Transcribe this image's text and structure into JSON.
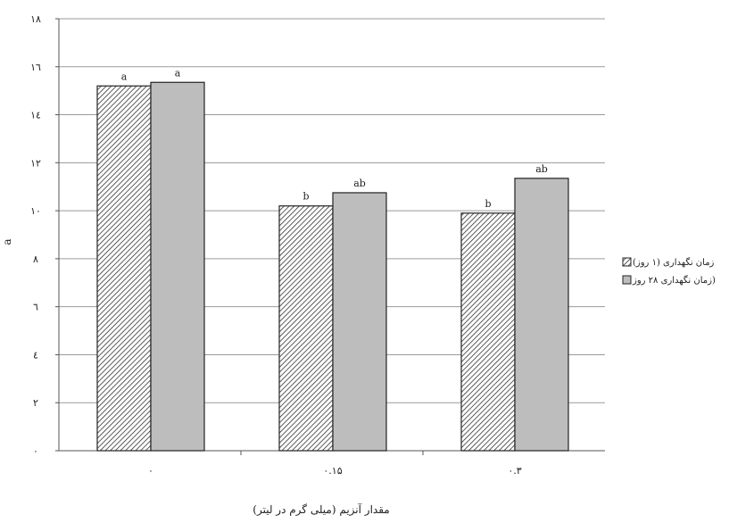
{
  "chart_data": {
    "type": "bar",
    "categories": [
      "۰",
      "۰.۱۵",
      "۰.۳"
    ],
    "series": [
      {
        "name": "زمان نگهداری (۱ روز)",
        "values": [
          15.2,
          10.2,
          9.9
        ],
        "labels": [
          "a",
          "b",
          "b"
        ],
        "pattern": "hatched"
      },
      {
        "name": "زمان نگهداری ۲۸ روز)",
        "values": [
          15.35,
          10.75,
          11.35
        ],
        "labels": [
          "a",
          "ab",
          "ab"
        ],
        "pattern": "solid"
      }
    ],
    "ylim": [
      0,
      18
    ],
    "yticks": [
      0,
      2,
      4,
      6,
      8,
      10,
      12,
      14,
      16,
      18
    ],
    "ytick_labels": [
      "۰",
      "۲",
      "٤",
      "٦",
      "۸",
      "۱۰",
      "۱۲",
      "١٤",
      "١٦",
      "۱۸"
    ],
    "ylabel": "a",
    "xlabel": "مقدار آنزیم (میلی گرم در لیتر)",
    "title": "",
    "grid": true,
    "legend_position": "right",
    "colors": {
      "hatch_fill": "#ffffff",
      "hatch_stroke": "#333333",
      "solid_fill": "#bdbdbd",
      "bar_stroke": "#222222",
      "grid": "#9a9a9a",
      "axis": "#555555"
    }
  }
}
